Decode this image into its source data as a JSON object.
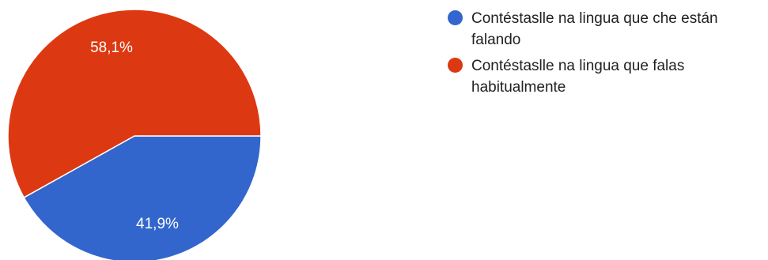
{
  "chart_data": {
    "type": "pie",
    "slices": [
      {
        "label": "Contéstaslle na lingua que che están falando",
        "value": 41.9,
        "display": "41,9%",
        "color": "#3366cc"
      },
      {
        "label": "Contéstaslle na lingua que falas habitualmente",
        "value": 58.1,
        "display": "58,1%",
        "color": "#dc3912"
      }
    ],
    "legend_position": "right"
  }
}
